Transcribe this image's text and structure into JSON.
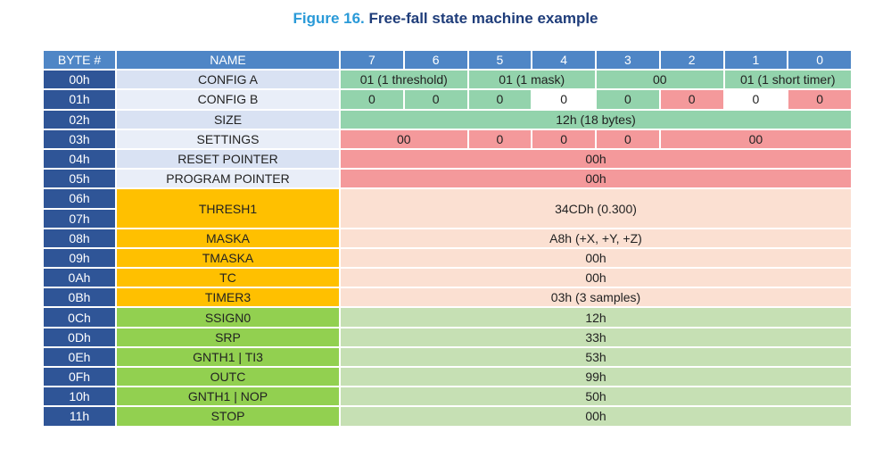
{
  "title": {
    "figure": "Figure 16.",
    "text": "Free-fall state machine example"
  },
  "table": {
    "header": [
      "BYTE #",
      "NAME",
      "7",
      "6",
      "5",
      "4",
      "3",
      "2",
      "1",
      "0"
    ],
    "rows": [
      {
        "byte": "00h",
        "name": "CONFIG A",
        "cells": [
          "01 (1 threshold)",
          "01 (1 mask)",
          "00",
          "01 (1 short timer)"
        ]
      },
      {
        "byte": "01h",
        "name": "CONFIG B",
        "cells": [
          "0",
          "0",
          "0",
          "0",
          "0",
          "0",
          "0",
          "0"
        ]
      },
      {
        "byte": "02h",
        "name": "SIZE",
        "cells": [
          "12h (18 bytes)"
        ]
      },
      {
        "byte": "03h",
        "name": "SETTINGS",
        "cells": [
          "00",
          "0",
          "0",
          "0",
          "00"
        ]
      },
      {
        "byte": "04h",
        "name": "RESET POINTER",
        "cells": [
          "00h"
        ]
      },
      {
        "byte": "05h",
        "name": "PROGRAM POINTER",
        "cells": [
          "00h"
        ]
      },
      {
        "byte": "06h",
        "name": "THRESH1",
        "cells": [
          "34CDh (0.300)"
        ]
      },
      {
        "byte": "07h"
      },
      {
        "byte": "08h",
        "name": "MASKA",
        "cells": [
          "A8h (+X, +Y, +Z)"
        ]
      },
      {
        "byte": "09h",
        "name": "TMASKA",
        "cells": [
          "00h"
        ]
      },
      {
        "byte": "0Ah",
        "name": "TC",
        "cells": [
          "00h"
        ]
      },
      {
        "byte": "0Bh",
        "name": "TIMER3",
        "cells": [
          "03h (3 samples)"
        ]
      },
      {
        "byte": "0Ch",
        "name": "SSIGN0",
        "cells": [
          "12h"
        ]
      },
      {
        "byte": "0Dh",
        "name": "SRP",
        "cells": [
          "33h"
        ]
      },
      {
        "byte": "0Eh",
        "name": "GNTH1 | TI3",
        "cells": [
          "53h"
        ]
      },
      {
        "byte": "0Fh",
        "name": "OUTC",
        "cells": [
          "99h"
        ]
      },
      {
        "byte": "10h",
        "name": "GNTH1 | NOP",
        "cells": [
          "50h"
        ]
      },
      {
        "byte": "11h",
        "name": "STOP",
        "cells": [
          "00h"
        ]
      }
    ]
  }
}
